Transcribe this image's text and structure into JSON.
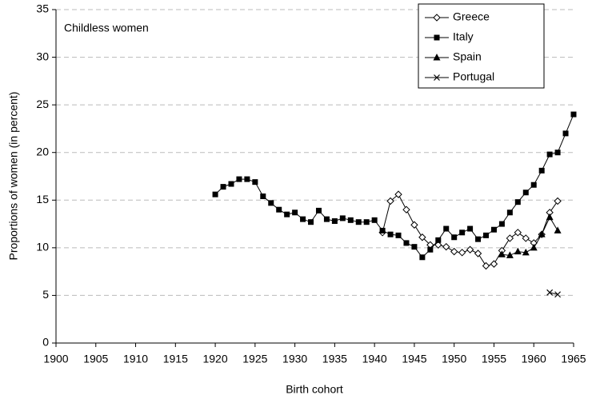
{
  "chart_data": {
    "type": "line",
    "annotation": "Childless women",
    "x_label": "Birth cohort",
    "y_label": "Proportions of women (in percent)",
    "xlim": [
      1900,
      1965
    ],
    "xticks": [
      1900,
      1905,
      1910,
      1915,
      1920,
      1925,
      1930,
      1935,
      1940,
      1945,
      1950,
      1955,
      1960,
      1965
    ],
    "ylim": [
      0,
      35
    ],
    "yticks": [
      0,
      5,
      10,
      15,
      20,
      25,
      30,
      35
    ],
    "grid": true,
    "legend": "upper right",
    "series": [
      {
        "name": "Greece",
        "color": "#000000",
        "marker": "diamond",
        "x": [
          1941,
          1942,
          1943,
          1944,
          1945,
          1946,
          1947,
          1948,
          1949,
          1950,
          1951,
          1952,
          1953,
          1954,
          1955,
          1956,
          1957,
          1958,
          1959,
          1960,
          1961,
          1962,
          1963
        ],
        "values": [
          11.6,
          14.9,
          15.6,
          14.0,
          12.4,
          11.1,
          10.3,
          10.3,
          10.1,
          9.6,
          9.5,
          9.8,
          9.4,
          8.1,
          8.3,
          9.7,
          11.0,
          11.6,
          11.0,
          10.5,
          11.4,
          13.7,
          14.9
        ]
      },
      {
        "name": "Italy",
        "color": "#000000",
        "marker": "square",
        "x": [
          1920,
          1921,
          1922,
          1923,
          1924,
          1925,
          1926,
          1927,
          1928,
          1929,
          1930,
          1931,
          1932,
          1933,
          1934,
          1935,
          1936,
          1937,
          1938,
          1939,
          1940,
          1941,
          1942,
          1943,
          1944,
          1945,
          1946,
          1947,
          1948,
          1949,
          1950,
          1951,
          1952,
          1953,
          1954,
          1955,
          1956,
          1957,
          1958,
          1959,
          1960,
          1961,
          1962,
          1963,
          1964,
          1965
        ],
        "values": [
          15.6,
          16.4,
          16.7,
          17.2,
          17.2,
          16.9,
          15.4,
          14.7,
          14.0,
          13.5,
          13.7,
          13.0,
          12.7,
          13.9,
          13.0,
          12.8,
          13.1,
          12.9,
          12.7,
          12.7,
          12.9,
          11.8,
          11.4,
          11.3,
          10.5,
          10.1,
          9.0,
          9.8,
          10.8,
          12.0,
          11.1,
          11.6,
          12.0,
          10.9,
          11.3,
          11.9,
          12.5,
          13.7,
          14.8,
          15.8,
          16.6,
          18.1,
          19.8,
          20.0,
          22.0,
          24.0
        ]
      },
      {
        "name": "Spain",
        "color": "#000000",
        "marker": "triangle",
        "x": [
          1956,
          1957,
          1958,
          1959,
          1960,
          1961,
          1962,
          1963
        ],
        "values": [
          9.3,
          9.2,
          9.6,
          9.5,
          10.0,
          11.4,
          13.2,
          11.8
        ]
      },
      {
        "name": "Portugal",
        "color": "#000000",
        "marker": "cross",
        "x": [
          1962,
          1963
        ],
        "values": [
          5.3,
          5.1
        ]
      }
    ]
  }
}
